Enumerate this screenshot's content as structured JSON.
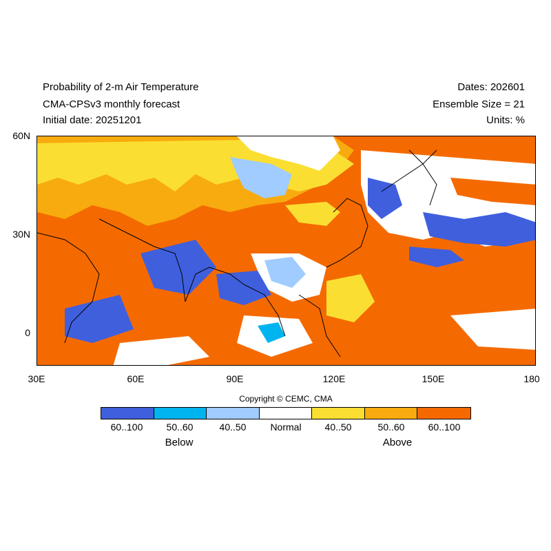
{
  "header": {
    "title": "Probability of 2-m Air Temperature",
    "subtitle": "CMA-CPSv3 monthly forecast",
    "initial_date": "Initial date: 20251201",
    "dates": "Dates: 202601",
    "ensemble": "Ensemble Size = 21",
    "units": "Units: %"
  },
  "axes": {
    "y_ticks": [
      "60N",
      "30N",
      "0"
    ],
    "x_ticks": [
      "30E",
      "60E",
      "90E",
      "120E",
      "150E",
      "180"
    ]
  },
  "map": {
    "lon_range": [
      30,
      180
    ],
    "lat_range": [
      -10,
      60
    ],
    "regions": [
      {
        "class": "above-60-100",
        "area": "Western Pacific (120E-180, 0-30N)"
      },
      {
        "class": "above-60-100",
        "area": "Tibetan Plateau and China"
      },
      {
        "class": "above-60-100",
        "area": "Arabian Peninsula and Northern India"
      },
      {
        "class": "above-60-100",
        "area": "Northeast Asia and Sea of Okhotsk"
      },
      {
        "class": "above-40-50",
        "area": "Central Asia and Mongolia"
      },
      {
        "class": "below-60-100",
        "area": "Arabian Sea and western Indian Ocean"
      },
      {
        "class": "below-60-100",
        "area": "North Pacific near 30-40N"
      },
      {
        "class": "below-40-50",
        "area": "Mongolia and Indochina"
      },
      {
        "class": "normal",
        "area": "Northwest Pacific, Indonesia, south Indian Ocean"
      }
    ]
  },
  "copyright": "Copyright © CEMC, CMA",
  "legend": {
    "bins": [
      {
        "label": "60..100",
        "color": "#3f5fdd"
      },
      {
        "label": "50..60",
        "color": "#00b4f0"
      },
      {
        "label": "40..50",
        "color": "#a0ccff"
      },
      {
        "label": "Normal",
        "color": "#ffffff"
      },
      {
        "label": "40..50",
        "color": "#fbde32"
      },
      {
        "label": "50..60",
        "color": "#f8ab0e"
      },
      {
        "label": "60..100",
        "color": "#f46a00"
      }
    ],
    "below_label": "Below",
    "above_label": "Above"
  },
  "colors": {
    "land": "#000000",
    "frame": "#000000"
  }
}
